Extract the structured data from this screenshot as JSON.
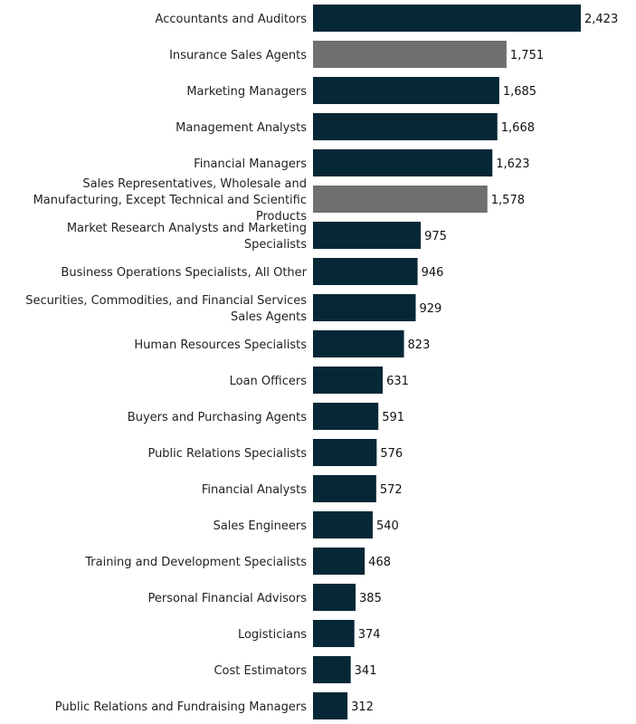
{
  "chart_data": {
    "type": "bar",
    "orientation": "horizontal",
    "title": "",
    "xlabel": "",
    "ylabel": "",
    "grid": false,
    "legend": "none",
    "colors": {
      "default": "#062836",
      "highlight": "#707070"
    },
    "categories": [
      "Accountants and Auditors",
      "Insurance Sales Agents",
      "Marketing Managers",
      "Management Analysts",
      "Financial Managers",
      "Sales Representatives, Wholesale and Manufacturing, Except Technical and Scientific Products",
      "Market Research Analysts and Marketing Specialists",
      "Business Operations Specialists, All Other",
      "Securities, Commodities, and Financial Services Sales Agents",
      "Human Resources Specialists",
      "Loan Officers",
      "Buyers and Purchasing Agents",
      "Public Relations Specialists",
      "Financial Analysts",
      "Sales Engineers",
      "Training and Development Specialists",
      "Personal Financial Advisors",
      "Logisticians",
      "Cost Estimators",
      "Public Relations and Fundraising Managers"
    ],
    "values": [
      2423,
      1751,
      1685,
      1668,
      1623,
      1578,
      975,
      946,
      929,
      823,
      631,
      591,
      576,
      572,
      540,
      468,
      385,
      374,
      341,
      312
    ],
    "value_labels": [
      "2,423",
      "1,751",
      "1,685",
      "1,668",
      "1,623",
      "1,578",
      "975",
      "946",
      "929",
      "823",
      "631",
      "591",
      "576",
      "572",
      "540",
      "468",
      "385",
      "374",
      "341",
      "312"
    ],
    "highlighted": [
      false,
      true,
      false,
      false,
      false,
      true,
      false,
      false,
      false,
      false,
      false,
      false,
      false,
      false,
      false,
      false,
      false,
      false,
      false,
      false
    ]
  }
}
